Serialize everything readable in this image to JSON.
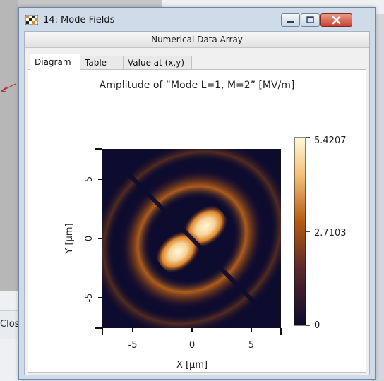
{
  "background": {
    "close_label": "Clos"
  },
  "window": {
    "title": "14: Mode Fields",
    "subtitle": "Numerical Data Array",
    "tabs": [
      {
        "label": "Diagram",
        "active": true
      },
      {
        "label": "Table",
        "active": false
      },
      {
        "label": "Value at (x,y)",
        "active": false
      }
    ],
    "icons": [
      "app-icon",
      "minimize-icon",
      "maximize-icon",
      "close-icon"
    ]
  },
  "plot": {
    "title": "Amplitude of “Mode L=1, M=2”  [MV/m]",
    "xlabel": "X [μm]",
    "ylabel": "Y [μm]",
    "x_ticks": [
      "-5",
      "0",
      "5"
    ],
    "y_ticks": [
      "5",
      "0",
      "-5"
    ],
    "colorbar": {
      "max_label": "5.4207",
      "mid_label": "2.7103",
      "min_label": "0"
    },
    "colors": {
      "low": "#0d0b2e",
      "mid": "#b35a12",
      "high": "#fff8dc"
    }
  }
}
